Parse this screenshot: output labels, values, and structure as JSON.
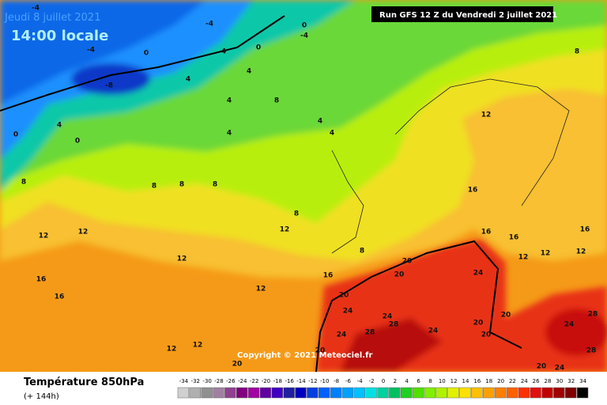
{
  "header": {
    "date": "Jeudi 8 juillet 2021",
    "time": "14:00 locale",
    "run": "Run GFS 12 Z du Vendredi 2 juillet 2021"
  },
  "map": {
    "copyright": "Copyright © 2021 Meteociel.fr",
    "contour_labels": [
      -4,
      -4,
      0,
      -4,
      0,
      -4,
      4,
      -8,
      0,
      4,
      4,
      8,
      4,
      4,
      4,
      4,
      0,
      4,
      0,
      8,
      12,
      8,
      8,
      8,
      8,
      8,
      16,
      12,
      12,
      12,
      12,
      12,
      16,
      16,
      16,
      16,
      12,
      12,
      12,
      8,
      20,
      20,
      24,
      16,
      20,
      24,
      24,
      28,
      24,
      20,
      28,
      24,
      20,
      20,
      28,
      24,
      28,
      24,
      20,
      20,
      12,
      12,
      20,
      16
    ]
  },
  "legend": {
    "title": "Température 850hPa",
    "subtitle": "(+ 144h)",
    "scale": {
      "values": [
        -34,
        -32,
        -30,
        -28,
        -26,
        -24,
        -22,
        -20,
        -18,
        -16,
        -14,
        -12,
        -10,
        -8,
        -6,
        -4,
        -2,
        0,
        2,
        4,
        6,
        8,
        10,
        12,
        14,
        16,
        18,
        20,
        22,
        24,
        26,
        28,
        30,
        32,
        34
      ],
      "colors": [
        "#d0d0d0",
        "#b0b0b0",
        "#909090",
        "#a080a0",
        "#904090",
        "#800080",
        "#a000a0",
        "#6000a0",
        "#4000c0",
        "#2020a0",
        "#0000c0",
        "#0040e0",
        "#0060ff",
        "#0080ff",
        "#00a0ff",
        "#00c0ff",
        "#00e0e0",
        "#00d0a0",
        "#00c060",
        "#20d020",
        "#50e000",
        "#80f000",
        "#b0f000",
        "#e0f000",
        "#ffe000",
        "#ffc000",
        "#ffa000",
        "#ff8000",
        "#ff6000",
        "#ff3000",
        "#e01010",
        "#c00000",
        "#a00000",
        "#800000",
        "#000000"
      ]
    }
  }
}
